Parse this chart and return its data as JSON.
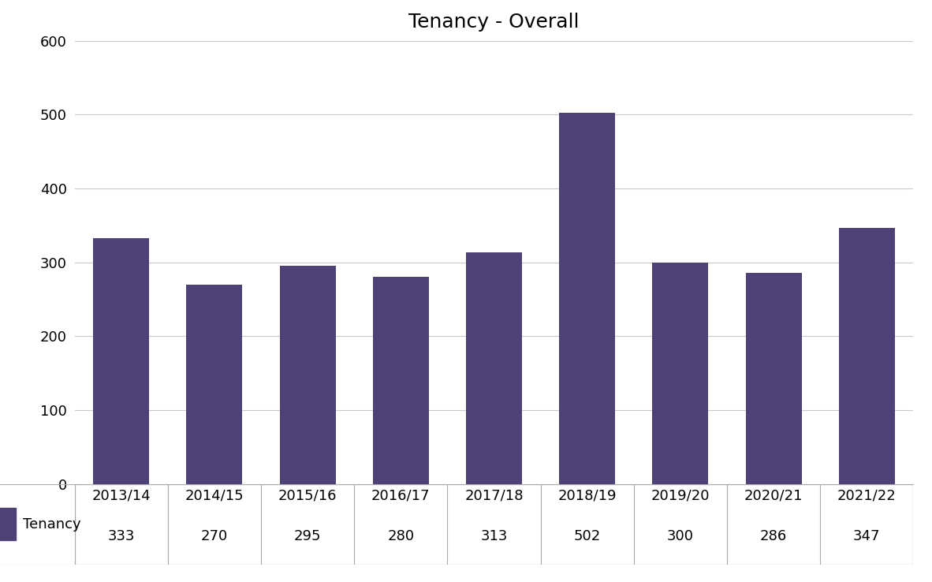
{
  "title": "Tenancy - Overall",
  "categories": [
    "2013/14",
    "2014/15",
    "2015/16",
    "2016/17",
    "2017/18",
    "2018/19",
    "2019/20",
    "2020/21",
    "2021/22"
  ],
  "values": [
    333,
    270,
    295,
    280,
    313,
    502,
    300,
    286,
    347
  ],
  "bar_color": "#4e4176",
  "ylim": [
    0,
    600
  ],
  "yticks": [
    0,
    100,
    200,
    300,
    400,
    500,
    600
  ],
  "legend_label": "Tenancy",
  "background_color": "#ffffff",
  "grid_color": "#c8c8c8",
  "title_fontsize": 18,
  "tick_fontsize": 13,
  "legend_fontsize": 13,
  "table_fontsize": 13
}
